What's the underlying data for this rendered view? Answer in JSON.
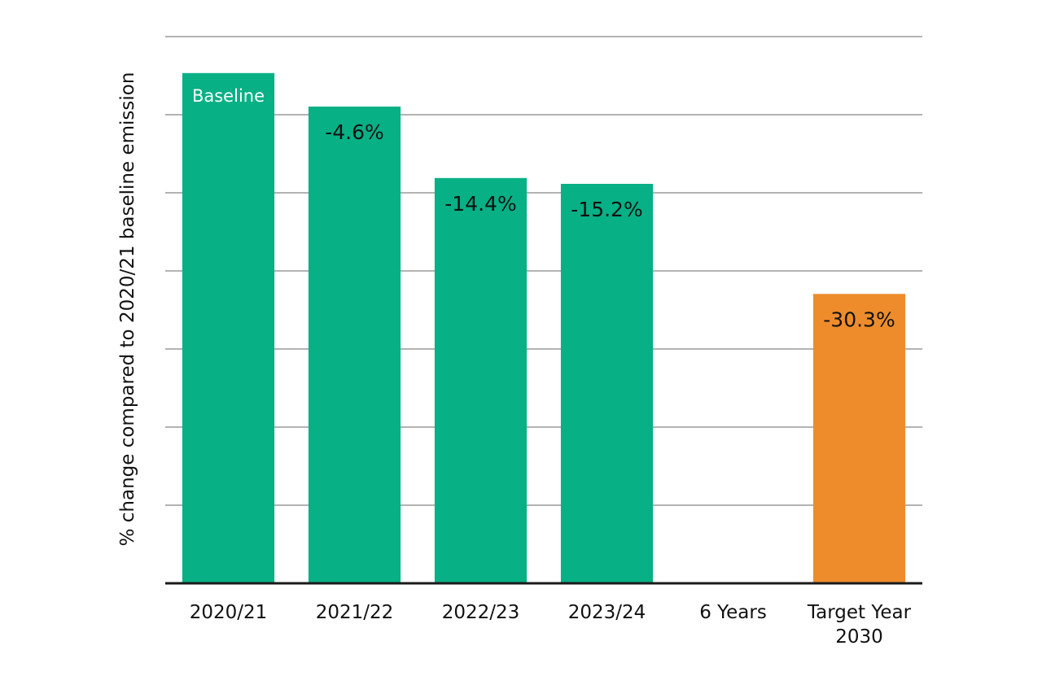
{
  "chart_data": {
    "type": "bar",
    "title": "",
    "ylabel": "% change compared to 2020/21 baseline emission",
    "xlabel": "",
    "ylim": [
      -70,
      5
    ],
    "grid": true,
    "categories": [
      {
        "lines": [
          "2020/21"
        ]
      },
      {
        "lines": [
          "2021/22"
        ]
      },
      {
        "lines": [
          "2022/23"
        ]
      },
      {
        "lines": [
          "2023/24"
        ]
      },
      {
        "lines": [
          "6 Years"
        ]
      },
      {
        "lines": [
          "Target Year",
          "2030"
        ]
      }
    ],
    "values": [
      0,
      -4.6,
      -14.4,
      -15.2,
      null,
      -30.3
    ],
    "data_labels": [
      "Baseline",
      "-4.6%",
      "-14.4%",
      "-15.2%",
      "",
      "-30.3%"
    ],
    "bar_colors": [
      "#08b085",
      "#08b085",
      "#08b085",
      "#08b085",
      "",
      "#ee8c2c"
    ],
    "label_on_dark": [
      true,
      false,
      false,
      false,
      false,
      false
    ]
  }
}
